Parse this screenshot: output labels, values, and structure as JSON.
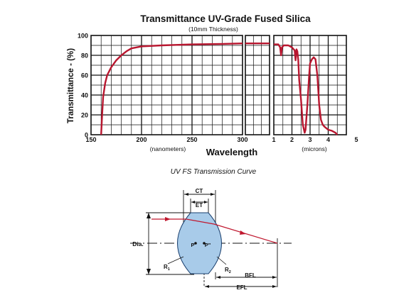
{
  "chart_data": {
    "type": "line",
    "title": "Transmittance UV-Grade Fused Silica",
    "subtitle": "(10mm Thickness)",
    "ylabel": "Transmittance - (%)",
    "xlabel": "Wavelength",
    "ylim": [
      0,
      100
    ],
    "yticks": [
      "0",
      "20",
      "40",
      "60",
      "80",
      "100"
    ],
    "grid": true,
    "panels": [
      {
        "name": "uv",
        "unit_label": "(nanometers)",
        "xlim": [
          150,
          300
        ],
        "xticks": [
          "150",
          "200",
          "250",
          "300"
        ],
        "x": [
          160,
          161,
          162,
          164,
          166,
          170,
          175,
          180,
          185,
          190,
          200,
          220,
          250,
          280,
          300
        ],
        "y": [
          0,
          20,
          38,
          52,
          60,
          68,
          75,
          80,
          84,
          87,
          89,
          90,
          91,
          91.5,
          92
        ]
      },
      {
        "name": "vis",
        "unit_label": "",
        "xlim": [
          0,
          1
        ],
        "xticks": [],
        "x": [
          0,
          1
        ],
        "y": [
          92,
          92
        ]
      },
      {
        "name": "ir",
        "unit_label": "(microns)",
        "xlim": [
          1,
          5
        ],
        "xticks": [
          "1",
          "2",
          "3",
          "4",
          "5"
        ],
        "x": [
          1.0,
          1.25,
          1.35,
          1.4,
          1.45,
          1.55,
          1.6,
          1.8,
          2.0,
          2.15,
          2.2,
          2.25,
          2.3,
          2.35,
          2.4,
          2.5,
          2.6,
          2.7,
          2.75,
          2.85,
          2.95,
          3.0,
          3.1,
          3.2,
          3.3,
          3.4,
          3.5,
          3.6,
          3.7,
          3.8,
          4.0,
          4.2,
          4.4,
          4.5
        ],
        "y": [
          91,
          91,
          88,
          80,
          88,
          90,
          90,
          90,
          88,
          85,
          75,
          86,
          84,
          75,
          55,
          35,
          10,
          2,
          5,
          30,
          60,
          72,
          76,
          78,
          76,
          60,
          30,
          15,
          10,
          8,
          5,
          4,
          2,
          0
        ]
      }
    ],
    "line_color": "#b8162f"
  },
  "figure_caption": "UV FS Transmission Curve",
  "lens_diagram": {
    "labels": {
      "ct": "CT",
      "et": "ET",
      "dia": "Dia.",
      "p": "P",
      "p_prime": "P\"",
      "r1": "R",
      "r1_sub": "1",
      "r2": "R",
      "r2_sub": "2",
      "bfl": "BFL",
      "efl": "EFL"
    },
    "lens_color": "#a8cbe9",
    "ray_color": "#c0182f"
  }
}
